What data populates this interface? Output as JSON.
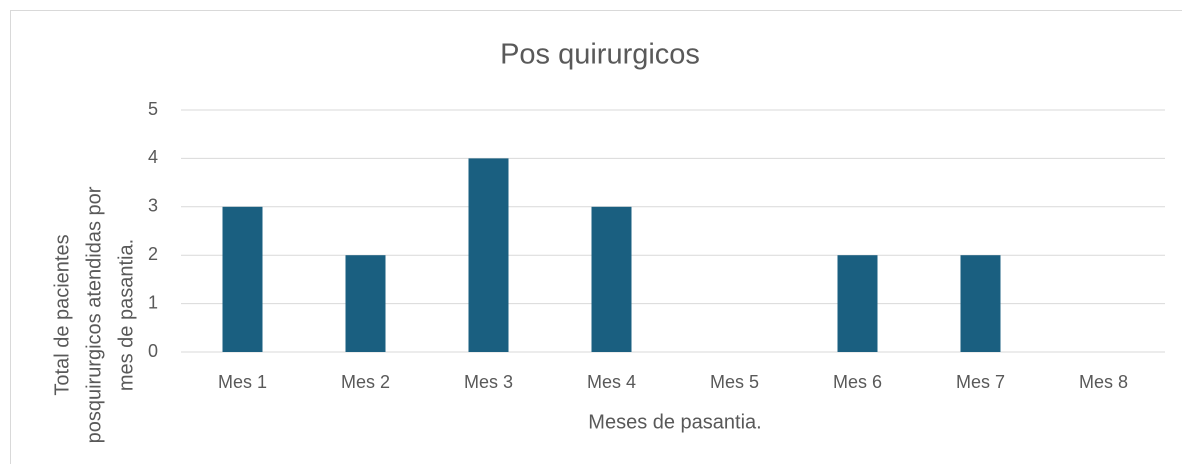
{
  "chart_data": {
    "type": "bar",
    "title": "Pos quirurgicos",
    "x_label": "Meses de pasantia.",
    "y_label": [
      "Total de pacientes",
      "posquirurgicos  atendidas por",
      "mes de pasantia."
    ],
    "categories": [
      "Mes 1",
      "Mes 2",
      "Mes 3",
      "Mes 4",
      "Mes 5",
      "Mes 6",
      "Mes 7",
      "Mes 8"
    ],
    "values": [
      3,
      2,
      4,
      3,
      0,
      2,
      2,
      0
    ],
    "color": "#1a5f80",
    "ylim": [
      0,
      5
    ],
    "yticks": [
      0,
      1,
      2,
      3,
      4,
      5
    ],
    "grid": true
  }
}
